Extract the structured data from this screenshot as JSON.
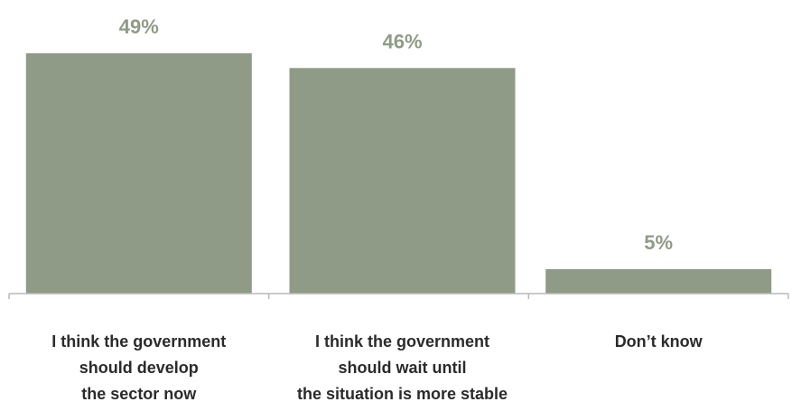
{
  "chart_data": {
    "type": "bar",
    "categories": [
      [
        "I think the government",
        "should develop",
        "the sector now"
      ],
      [
        "I think the government",
        "should wait until",
        "the situation is more stable"
      ],
      [
        "Don’t know"
      ]
    ],
    "values": [
      49,
      46,
      5
    ],
    "value_labels": [
      "49%",
      "46%",
      "5%"
    ],
    "title": "",
    "xlabel": "",
    "ylabel": "",
    "ylim": [
      0,
      49
    ],
    "grid": false,
    "legend": "none",
    "colors": {
      "bar": "#8f9b86",
      "value_label": "#8f9b86",
      "axis": "#b8b8b8",
      "category_label": "#2b2b2b"
    }
  }
}
